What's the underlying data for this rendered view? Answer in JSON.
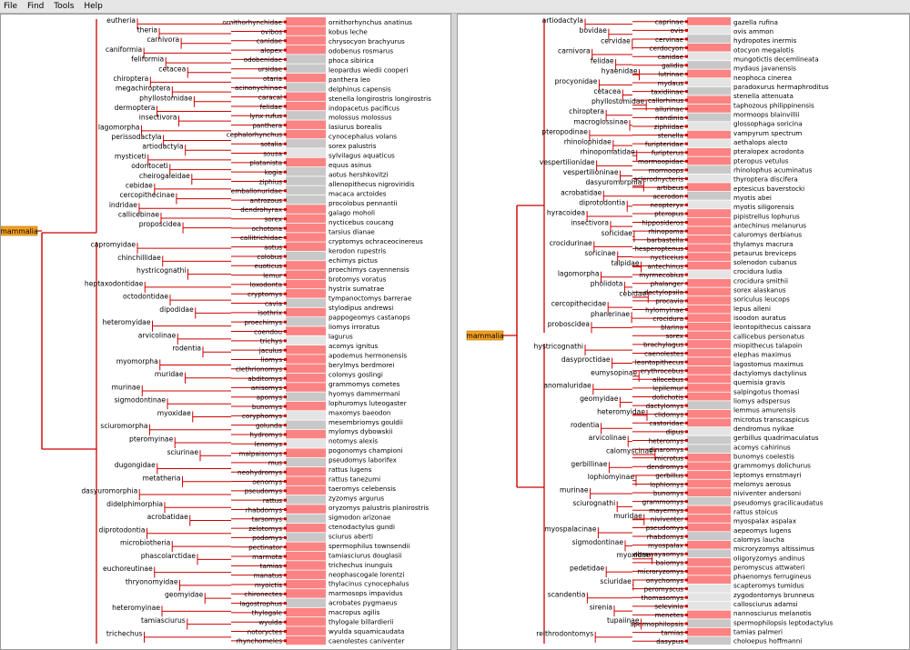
{
  "menu": [
    "File",
    "Find",
    "Tools",
    "Help"
  ],
  "colors": {
    "edge": "#cc0000",
    "pink": "#fb8383",
    "gray": "#c8c8c8",
    "root": "#f5a020"
  },
  "left": {
    "root": {
      "label": "mammalia"
    },
    "upper_nodes": [
      "eutheria",
      "theria",
      "carnivora",
      "caniformia",
      "feliformia",
      "cetacea",
      "chiroptera",
      "megachiroptera",
      "phyllostomidae",
      "dermoptera",
      "insectivora",
      "lagomorpha",
      "perissodactyla",
      "artiodactyla",
      "mysticeti",
      "odontoceti",
      "cheirogaleidae",
      "cebidae",
      "cercopithecinae",
      "indridae",
      "callicebinae",
      "proposcidea"
    ],
    "lower_nodes": [
      "capromyidae",
      "chinchillidae",
      "hystricognathi",
      "heptaxodontidae",
      "octodontidae",
      "dipodidae",
      "heteromyidae",
      "arvicolinae",
      "rodentia",
      "myomorpha",
      "muridae",
      "murinae",
      "sigmodontinae",
      "myoxidae",
      "sciuromorpha",
      "pteromyinae",
      "sciurinae",
      "dugongidae",
      "metatheria",
      "dasyuromorphia",
      "didelphimorphia",
      "acrobatidae",
      "diprotodontia",
      "microbiotheria",
      "phascolarctidae",
      "euchoreutinae",
      "thryonomyidae",
      "geomyidae",
      "heteromyinae",
      "tamiasciurus",
      "trichechus"
    ],
    "bars": [
      "ornithorhynchidae",
      "ovibos",
      "canidae",
      "alopex",
      "odobenidae",
      "ursidae",
      "otaria",
      "acinonychinae",
      "caracal",
      "felidae",
      "lynx rufus",
      "panthera",
      "cephalorhynchus",
      "sotalia",
      "sousa",
      "platanista",
      "kogia",
      "ziphius",
      "emballonuridae",
      "antrozous",
      "dendrohyrax",
      "sorex",
      "ochotona",
      "callitrichidae",
      "aotus",
      "colobus",
      "euoticus",
      "lemur",
      "loxodonta",
      "cryptomys",
      "cavia",
      "isothrix",
      "proechimys",
      "coendou",
      "trichys",
      "jaculus",
      "liomys",
      "clethrionomys",
      "abditomys",
      "anisomys",
      "apomys",
      "bunomys",
      "coryphomys",
      "golunda",
      "hydromys",
      "lenomys",
      "malpaisomys",
      "mus",
      "neohydromys",
      "oenomys",
      "pseudomys",
      "rattus",
      "rhabdomys",
      "tarsomys",
      "zelotomys",
      "podomys",
      "pectinator",
      "marmota",
      "tamias",
      "manatus",
      "myoictis",
      "chironectes",
      "lagostrophus",
      "thylogale",
      "wyulda",
      "notoryctes",
      "rhynchomeles"
    ],
    "leaves": [
      "ornithorhynchus anatinus",
      "kobus leche",
      "chrysocyon brachyurus",
      "odobenus rosmarus",
      "phoca sibirica",
      "leopardus wiedii cooperi",
      "panthera leo",
      "delphinus capensis",
      "stenella longirostris longirostris",
      "indopacetus pacificus",
      "molossus molossus",
      "lasiurus borealis",
      "cynocephalus volans",
      "sorex palustris",
      "sylvilagus aquaticus",
      "equus asinus",
      "aotus hershkovitzi",
      "allenopithecus nigroviridis",
      "macaca arctoides",
      "procolobus pennantii",
      "galago moholi",
      "nycticebus coucang",
      "tarsius dianae",
      "cryptomys ochraceocinereus",
      "kerodon rupestris",
      "echimys pictus",
      "proechimys cayennensis",
      "brotomys voratus",
      "hystrix sumatrae",
      "tympanoctomys barrerae",
      "stylodipus andrewsi",
      "pappogeomys castanops",
      "liomys irroratus",
      "lagurus",
      "acomys ignitus",
      "apodemus hermonensis",
      "berylmys berdmorei",
      "colomys goslingi",
      "grammomys cometes",
      "hyomys dammermani",
      "lophuromys luteogaster",
      "maxomys baeodon",
      "mesembriomys gouldii",
      "mylomys dybowskii",
      "notomys alexis",
      "pogonomys championi",
      "pseudomys laborifex",
      "rattus lugens",
      "rattus tanezumi",
      "taeromys celebensis",
      "zyzomys argurus",
      "oryzomys palustris planirostris",
      "sigmodon arizonae",
      "ctenodactylus gundi",
      "sciurus aberti",
      "spermophilus townsendii",
      "tamiasciurus douglasii",
      "trichechus inunguis",
      "neophascogale lorentzi",
      "thylacinus cynocephalus",
      "marmosops impavidus",
      "acrobates pygmaeus",
      "macropus agilis",
      "thylogale billardierii",
      "wyulda squamicaudata",
      "caenolestes caniventer"
    ]
  },
  "right": {
    "root": {
      "label": "mammalia"
    },
    "upper_nodes": [
      "artiodactyla",
      "bovidae",
      "cervidae",
      "carnivora",
      "felidae",
      "hyaenidae",
      "procyonidae",
      "cetacea",
      "phyllostomidae",
      "chiroptera",
      "macroglossinae",
      "pteropodinae",
      "rhinolophidae",
      "rhinopomatidae",
      "vespertilionidae",
      "vespertilioninae",
      "dasyuromorphia",
      "acrobatidae",
      "diprotodontia",
      "hyracoidea",
      "insectivora",
      "soricidae",
      "crocidurinae",
      "soricinae",
      "talpidae",
      "lagomorpha",
      "pholidota",
      "cebidae",
      "cercopithecidae",
      "phanerinae",
      "proboscidea"
    ],
    "lower_nodes": [
      "hystricognathi",
      "dasyproctidae",
      "eumysopinae",
      "anomaluridae",
      "geomyidae",
      "heteromyidae",
      "rodentia",
      "arvicolinae",
      "calomyscinae",
      "gerbillinae",
      "lophiomyinae",
      "murinae",
      "sciurognathi",
      "muridae",
      "myospalacinae",
      "sigmodontinae",
      "myoxidae",
      "pedetidae",
      "sciuridae",
      "scandentia",
      "sirenia",
      "tupaiinae",
      "reithrodontomys"
    ],
    "bars": [
      "caprinae",
      "ovis",
      "cervinae",
      "cerdocyon",
      "canidae",
      "galidia",
      "lutrinae",
      "mydaus",
      "taxidiinae",
      "callorhinus",
      "ailurinae",
      "nandinia",
      "ziphiidae",
      "stenella",
      "furipteridae",
      "furipterus",
      "mormoopidae",
      "mormoops",
      "sclerodnycteris",
      "artibeus",
      "acerodon",
      "neopteryx",
      "pteropus",
      "hipposideros",
      "rhinopoma",
      "barbastella",
      "hesperoptenus",
      "nycticeius",
      "antechinus",
      "myrmecobius",
      "phalanger",
      "dactylopsila",
      "procavia",
      "hylomyinae",
      "crocidura",
      "blarina",
      "sorex",
      "brachylagus",
      "caenolestes",
      "leontopithecus",
      "erythrocebus",
      "allocebus",
      "lepilemur",
      "dolichotis",
      "dactylomys",
      "clidomys",
      "castoridae",
      "dipus",
      "heteromys",
      "dinaromys",
      "microtus",
      "dendromys",
      "gerbillus",
      "lophiomys",
      "bunomys",
      "grammomys",
      "mayermys",
      "niviventer",
      "pseudomys",
      "rhabdomys",
      "myospalax",
      "abrawayaomys",
      "baiomys",
      "microryzomys",
      "onychomys",
      "peromyscus",
      "thomasomys",
      "selevinia",
      "menetes",
      "spermophilopsis",
      "tamias",
      "dasypus"
    ],
    "leaves": [
      "gazella rufina",
      "ovis ammon",
      "hydropotes inermis",
      "otocyon megalotis",
      "mungotictis decemlineata",
      "mydaus javanensis",
      "neophoca cinerea",
      "paradoxurus hermaphroditus",
      "stenella attenuata",
      "taphozous philippinensis",
      "mormoops blainvillii",
      "glossophaga soricina",
      "vampyrum spectrum",
      "aethalops alecto",
      "pteralopex acrodonta",
      "pteropus vetulus",
      "rhinolophus acuminatus",
      "thyroptera discifera",
      "eptesicus baverstocki",
      "myotis abei",
      "myotis siligorensis",
      "pipistrellus lophurus",
      "antechinus melanurus",
      "caluromys derbianus",
      "thylamys macrura",
      "petaurus breviceps",
      "solenodon cubanus",
      "crocidura ludia",
      "crocidura smithii",
      "sorex alaskanus",
      "soriculus leucops",
      "lepus alleni",
      "isoodon auratus",
      "leontopithecus caissara",
      "callicebus personatus",
      "miopithecus talapoin",
      "elephas maximus",
      "lagostomus maximus",
      "dactylomys dactylinus",
      "quemisia gravis",
      "salpingotus thomasi",
      "liomys adspersus",
      "lemmus amurensis",
      "microtus transcaspicus",
      "dendromus nyikae",
      "gerbillus quadrimaculatus",
      "acomys cahirinus",
      "bunomys coelestis",
      "grammomys dolichurus",
      "leptomys ernstmayri",
      "melomys aerosus",
      "niviventer andersoni",
      "pseudomys gracilicaudatus",
      "rattus stoicus",
      "myospalax aspalax",
      "aepeomys lugens",
      "calomys laucha",
      "microryzomys altissimus",
      "oligoryzomys andinus",
      "peromyscus attwateri",
      "phaenomys ferrugineus",
      "scapteromys tumidus",
      "zygodontomys brunneus",
      "callosciurus adamsi",
      "nannosciurus melanotis",
      "spermophilopsis leptodactylus",
      "tamias palmeri",
      "choloepus hoffmanni"
    ]
  }
}
